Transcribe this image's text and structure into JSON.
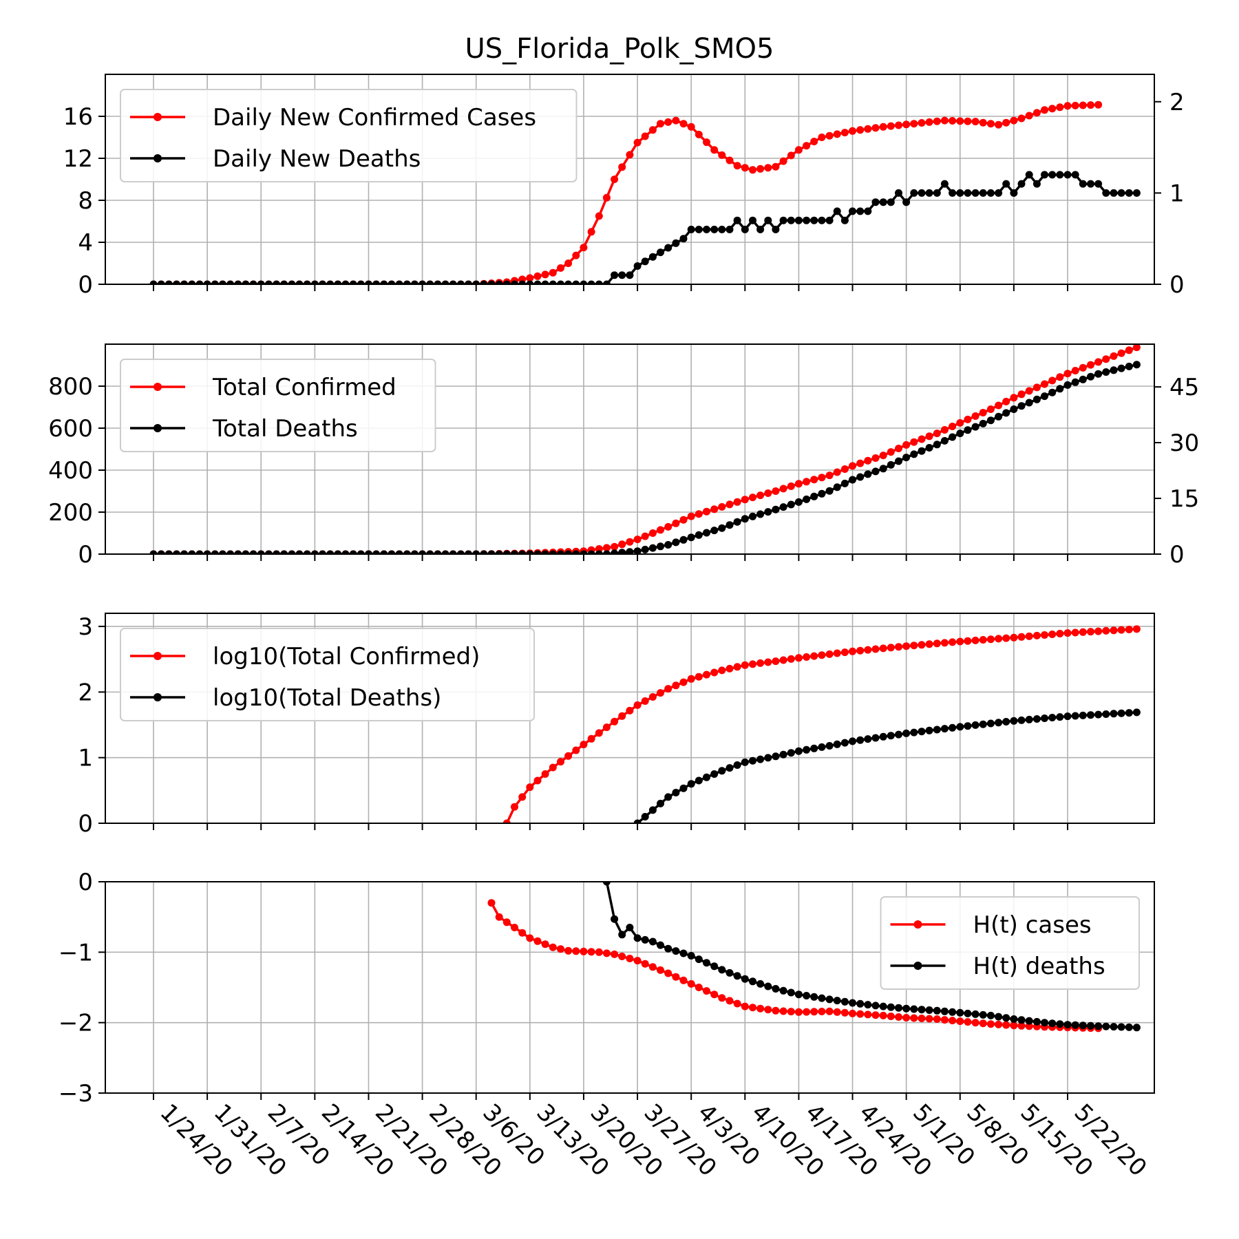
{
  "figure": {
    "title": "US_Florida_Polk_SMO5",
    "colors": {
      "cases": "#ff0000",
      "deaths": "#000000",
      "grid": "#b0b0b0"
    }
  },
  "chart_data": [
    {
      "type": "line",
      "panel": "daily",
      "x_tick_labels": [
        "1/24/20",
        "1/31/20",
        "2/7/20",
        "2/14/20",
        "2/21/20",
        "2/28/20",
        "3/6/20",
        "3/13/20",
        "3/20/20",
        "3/27/20",
        "4/3/20",
        "4/10/20",
        "4/17/20",
        "4/24/20",
        "5/1/20",
        "5/8/20",
        "5/15/20",
        "5/22/20"
      ],
      "x_range": [
        "1/24/20",
        "5/26/20"
      ],
      "ylim_left": [
        0,
        20
      ],
      "yticks_left": [
        0,
        4,
        8,
        12,
        16
      ],
      "ylim_right": [
        0,
        2.3
      ],
      "yticks_right": [
        0,
        1,
        2
      ],
      "grid": true,
      "legend_position": "top-left",
      "series": [
        {
          "name": "Daily New Confirmed Cases",
          "axis": "left",
          "color": "#ff0000",
          "keypoints": [
            [
              "1/24/20",
              0
            ],
            [
              "3/6/20",
              0
            ],
            [
              "3/10/20",
              0.2
            ],
            [
              "3/13/20",
              0.6
            ],
            [
              "3/16/20",
              1.1
            ],
            [
              "3/18/20",
              2.0
            ],
            [
              "3/20/20",
              3.5
            ],
            [
              "3/22/20",
              6.5
            ],
            [
              "3/24/20",
              10.0
            ],
            [
              "3/27/20",
              13.5
            ],
            [
              "3/30/20",
              15.3
            ],
            [
              "4/1/20",
              15.6
            ],
            [
              "4/3/20",
              15.0
            ],
            [
              "4/6/20",
              12.8
            ],
            [
              "4/9/20",
              11.3
            ],
            [
              "4/11/20",
              10.9
            ],
            [
              "4/14/20",
              11.2
            ],
            [
              "4/17/20",
              12.8
            ],
            [
              "4/20/20",
              14.0
            ],
            [
              "4/24/20",
              14.6
            ],
            [
              "4/28/20",
              15.0
            ],
            [
              "5/2/20",
              15.3
            ],
            [
              "5/6/20",
              15.6
            ],
            [
              "5/10/20",
              15.5
            ],
            [
              "5/13/20",
              15.2
            ],
            [
              "5/16/20",
              15.8
            ],
            [
              "5/19/20",
              16.6
            ],
            [
              "5/22/20",
              17.0
            ],
            [
              "5/26/20",
              17.1
            ]
          ]
        },
        {
          "name": "Daily New Deaths",
          "axis": "right",
          "color": "#000000",
          "keypoints": [
            [
              "1/24/20",
              0
            ],
            [
              "3/23/20",
              0
            ],
            [
              "3/24/20",
              0.1
            ],
            [
              "3/26/20",
              0.1
            ],
            [
              "3/27/20",
              0.2
            ],
            [
              "3/29/20",
              0.3
            ],
            [
              "3/31/20",
              0.4
            ],
            [
              "4/2/20",
              0.5
            ],
            [
              "4/3/20",
              0.6
            ],
            [
              "4/8/20",
              0.6
            ],
            [
              "4/9/20",
              0.7
            ],
            [
              "4/10/20",
              0.6
            ],
            [
              "4/11/20",
              0.7
            ],
            [
              "4/12/20",
              0.6
            ],
            [
              "4/13/20",
              0.7
            ],
            [
              "4/14/20",
              0.6
            ],
            [
              "4/15/20",
              0.7
            ],
            [
              "4/21/20",
              0.7
            ],
            [
              "4/22/20",
              0.8
            ],
            [
              "4/23/20",
              0.7
            ],
            [
              "4/24/20",
              0.8
            ],
            [
              "4/26/20",
              0.8
            ],
            [
              "4/27/20",
              0.9
            ],
            [
              "4/29/20",
              0.9
            ],
            [
              "4/30/20",
              1.0
            ],
            [
              "5/1/20",
              0.9
            ],
            [
              "5/2/20",
              1.0
            ],
            [
              "5/5/20",
              1.0
            ],
            [
              "5/6/20",
              1.1
            ],
            [
              "5/7/20",
              1.0
            ],
            [
              "5/13/20",
              1.0
            ],
            [
              "5/14/20",
              1.1
            ],
            [
              "5/15/20",
              1.0
            ],
            [
              "5/16/20",
              1.1
            ],
            [
              "5/17/20",
              1.2
            ],
            [
              "5/18/20",
              1.1
            ],
            [
              "5/19/20",
              1.2
            ],
            [
              "5/23/20",
              1.2
            ],
            [
              "5/24/20",
              1.1
            ],
            [
              "5/26/20",
              1.1
            ],
            [
              "5/27/20",
              1.0
            ],
            [
              "5/31/20",
              1.0
            ]
          ]
        }
      ]
    },
    {
      "type": "line",
      "panel": "total",
      "ylim_left": [
        0,
        1000
      ],
      "yticks_left": [
        0,
        200,
        400,
        600,
        800
      ],
      "ylim_right": [
        0,
        56.5
      ],
      "yticks_right": [
        0,
        15,
        30,
        45
      ],
      "grid": true,
      "legend_position": "top-left",
      "series": [
        {
          "name": "Total Confirmed",
          "axis": "left",
          "color": "#ff0000",
          "keypoints": [
            [
              "1/24/20",
              0
            ],
            [
              "3/6/20",
              0
            ],
            [
              "3/13/20",
              4
            ],
            [
              "3/20/20",
              14
            ],
            [
              "3/24/20",
              35
            ],
            [
              "3/27/20",
              70
            ],
            [
              "3/31/20",
              130
            ],
            [
              "4/3/20",
              180
            ],
            [
              "4/7/20",
              225
            ],
            [
              "4/10/20",
              260
            ],
            [
              "4/14/20",
              300
            ],
            [
              "4/17/20",
              335
            ],
            [
              "4/21/20",
              375
            ],
            [
              "4/24/20",
              420
            ],
            [
              "4/28/20",
              470
            ],
            [
              "5/1/20",
              520
            ],
            [
              "5/5/20",
              575
            ],
            [
              "5/8/20",
              625
            ],
            [
              "5/12/20",
              690
            ],
            [
              "5/15/20",
              745
            ],
            [
              "5/19/20",
              810
            ],
            [
              "5/22/20",
              860
            ],
            [
              "5/26/20",
              915
            ],
            [
              "5/31/20",
              985
            ]
          ]
        },
        {
          "name": "Total Deaths",
          "axis": "right",
          "color": "#000000",
          "keypoints": [
            [
              "1/24/20",
              0
            ],
            [
              "3/23/20",
              0
            ],
            [
              "3/27/20",
              0.8
            ],
            [
              "3/31/20",
              2.5
            ],
            [
              "4/3/20",
              4.5
            ],
            [
              "4/7/20",
              7
            ],
            [
              "4/10/20",
              9.5
            ],
            [
              "4/14/20",
              12
            ],
            [
              "4/17/20",
              14
            ],
            [
              "4/21/20",
              17
            ],
            [
              "4/24/20",
              20
            ],
            [
              "4/28/20",
              23
            ],
            [
              "5/1/20",
              26
            ],
            [
              "5/5/20",
              29.5
            ],
            [
              "5/8/20",
              32.5
            ],
            [
              "5/12/20",
              36
            ],
            [
              "5/15/20",
              39
            ],
            [
              "5/19/20",
              42.5
            ],
            [
              "5/22/20",
              45.5
            ],
            [
              "5/26/20",
              48.5
            ],
            [
              "5/31/20",
              51
            ]
          ]
        }
      ]
    },
    {
      "type": "line",
      "panel": "log",
      "ylim_left": [
        0,
        3.2
      ],
      "yticks_left": [
        0,
        1,
        2,
        3
      ],
      "grid": true,
      "legend_position": "top-left",
      "series": [
        {
          "name": "log10(Total Confirmed)",
          "axis": "left",
          "color": "#ff0000",
          "keypoints": [
            [
              "3/10/20",
              0
            ],
            [
              "3/11/20",
              0.25
            ],
            [
              "3/13/20",
              0.55
            ],
            [
              "3/16/20",
              0.85
            ],
            [
              "3/20/20",
              1.2
            ],
            [
              "3/24/20",
              1.55
            ],
            [
              "3/27/20",
              1.8
            ],
            [
              "3/31/20",
              2.05
            ],
            [
              "4/3/20",
              2.2
            ],
            [
              "4/7/20",
              2.33
            ],
            [
              "4/10/20",
              2.41
            ],
            [
              "4/14/20",
              2.47
            ],
            [
              "4/17/20",
              2.52
            ],
            [
              "4/24/20",
              2.62
            ],
            [
              "5/1/20",
              2.7
            ],
            [
              "5/8/20",
              2.77
            ],
            [
              "5/15/20",
              2.83
            ],
            [
              "5/22/20",
              2.9
            ],
            [
              "5/31/20",
              2.96
            ]
          ]
        },
        {
          "name": "log10(Total Deaths)",
          "axis": "left",
          "color": "#000000",
          "keypoints": [
            [
              "3/27/20",
              0
            ],
            [
              "3/28/20",
              0.1
            ],
            [
              "3/31/20",
              0.4
            ],
            [
              "4/3/20",
              0.6
            ],
            [
              "4/7/20",
              0.8
            ],
            [
              "4/10/20",
              0.93
            ],
            [
              "4/14/20",
              1.02
            ],
            [
              "4/17/20",
              1.1
            ],
            [
              "4/21/20",
              1.18
            ],
            [
              "4/24/20",
              1.25
            ],
            [
              "5/1/20",
              1.37
            ],
            [
              "5/8/20",
              1.47
            ],
            [
              "5/15/20",
              1.56
            ],
            [
              "5/22/20",
              1.63
            ],
            [
              "5/31/20",
              1.69
            ]
          ]
        }
      ]
    },
    {
      "type": "line",
      "panel": "hurst",
      "ylim_left": [
        -3,
        0
      ],
      "yticks_left": [
        0,
        -1,
        -2,
        -3
      ],
      "grid": true,
      "legend_position": "top-right",
      "series": [
        {
          "name": "H(t) cases",
          "axis": "left",
          "color": "#ff0000",
          "keypoints": [
            [
              "3/8/20",
              -0.3
            ],
            [
              "3/9/20",
              -0.5
            ],
            [
              "3/11/20",
              -0.65
            ],
            [
              "3/13/20",
              -0.8
            ],
            [
              "3/16/20",
              -0.93
            ],
            [
              "3/18/20",
              -0.98
            ],
            [
              "3/22/20",
              -1.0
            ],
            [
              "3/24/20",
              -1.03
            ],
            [
              "3/27/20",
              -1.12
            ],
            [
              "3/31/20",
              -1.3
            ],
            [
              "4/3/20",
              -1.45
            ],
            [
              "4/7/20",
              -1.65
            ],
            [
              "4/10/20",
              -1.77
            ],
            [
              "4/14/20",
              -1.83
            ],
            [
              "4/17/20",
              -1.85
            ],
            [
              "4/21/20",
              -1.84
            ],
            [
              "4/24/20",
              -1.87
            ],
            [
              "4/28/20",
              -1.9
            ],
            [
              "5/1/20",
              -1.93
            ],
            [
              "5/5/20",
              -1.95
            ],
            [
              "5/8/20",
              -1.98
            ],
            [
              "5/12/20",
              -2.02
            ],
            [
              "5/15/20",
              -2.04
            ],
            [
              "5/19/20",
              -2.06
            ],
            [
              "5/26/20",
              -2.08
            ]
          ]
        },
        {
          "name": "H(t) deaths",
          "axis": "left",
          "color": "#000000",
          "keypoints": [
            [
              "3/23/20",
              0
            ],
            [
              "3/24/20",
              -0.53
            ],
            [
              "3/25/20",
              -0.75
            ],
            [
              "3/26/20",
              -0.65
            ],
            [
              "3/27/20",
              -0.8
            ],
            [
              "3/29/20",
              -0.85
            ],
            [
              "3/31/20",
              -0.95
            ],
            [
              "4/3/20",
              -1.05
            ],
            [
              "4/7/20",
              -1.25
            ],
            [
              "4/10/20",
              -1.38
            ],
            [
              "4/14/20",
              -1.52
            ],
            [
              "4/17/20",
              -1.6
            ],
            [
              "4/21/20",
              -1.67
            ],
            [
              "4/24/20",
              -1.72
            ],
            [
              "4/28/20",
              -1.77
            ],
            [
              "5/1/20",
              -1.8
            ],
            [
              "5/5/20",
              -1.83
            ],
            [
              "5/8/20",
              -1.86
            ],
            [
              "5/12/20",
              -1.9
            ],
            [
              "5/15/20",
              -1.95
            ],
            [
              "5/19/20",
              -2.0
            ],
            [
              "5/22/20",
              -2.03
            ],
            [
              "5/26/20",
              -2.05
            ],
            [
              "5/31/20",
              -2.07
            ]
          ]
        }
      ]
    }
  ]
}
